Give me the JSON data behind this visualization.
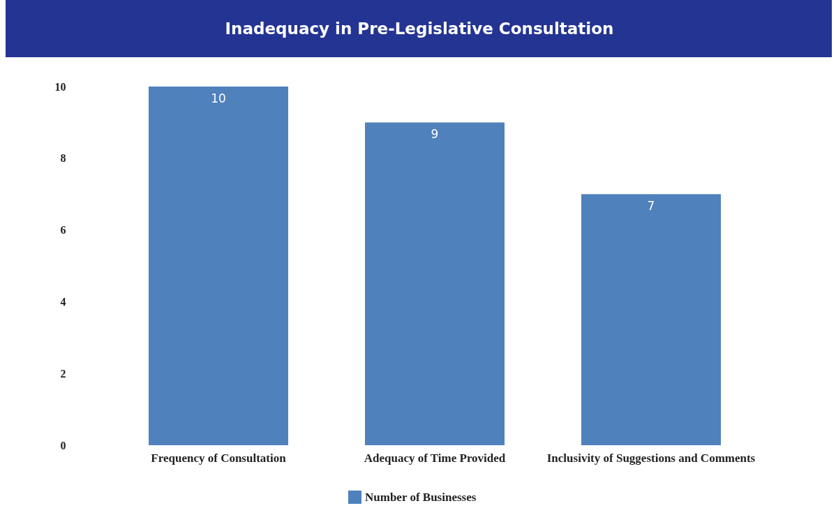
{
  "chart_data": {
    "type": "bar",
    "title": "Inadequacy in Pre-Legislative Consultation",
    "categories": [
      "Frequency of Consultation",
      "Adequacy of Time Provided",
      "Inclusivity of Suggestions and Comments"
    ],
    "series": [
      {
        "name": "Number of Businesses",
        "color": "#4f81bd",
        "values": [
          10,
          9,
          7
        ]
      }
    ],
    "ylim": [
      0,
      10
    ],
    "yticks": [
      0,
      2,
      4,
      6,
      8,
      10
    ],
    "grid": false,
    "data_labels": true,
    "legend": "bottom"
  }
}
